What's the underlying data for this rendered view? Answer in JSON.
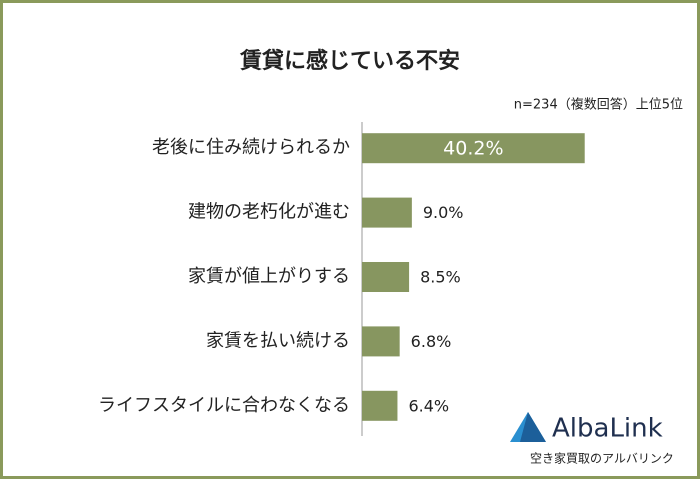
{
  "chart_data": {
    "type": "barh",
    "title": "賃貸に感じている不安",
    "subtitle": "n=234（複数回答）上位5位",
    "categories": [
      "老後に住み続けられるか",
      "建物の老朽化が進む",
      "家賃が値上がりする",
      "家賃を払い続ける",
      "ライフスタイルに合わなくなる"
    ],
    "values": [
      40.2,
      9.0,
      8.5,
      6.8,
      6.4
    ],
    "value_labels": [
      "40.2%",
      "9.0%",
      "8.5%",
      "6.8%",
      "6.4%"
    ],
    "color": "#879660",
    "xlim": [
      0,
      50
    ]
  },
  "logo": {
    "name": "AlbaLink",
    "tagline": "空き家買取のアルバリンク"
  }
}
